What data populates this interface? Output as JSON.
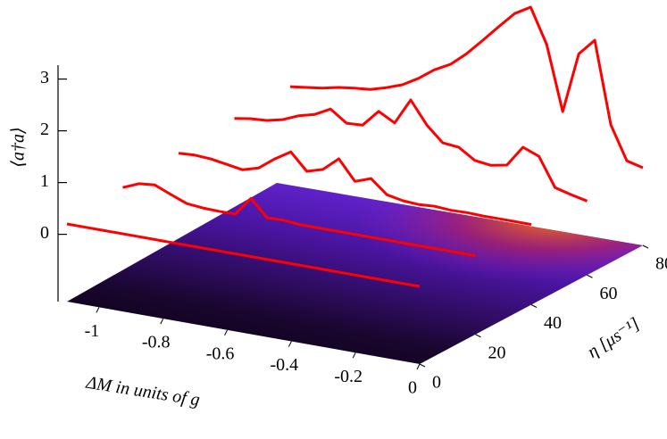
{
  "chart_data": {
    "type": "waterfall3d",
    "xlabel": "ΔM in units of g",
    "ylabel": "η [μs⁻¹]",
    "zlabel": "⟨a†a⟩",
    "xlim": [
      -1.1,
      0
    ],
    "ylim": [
      0,
      80
    ],
    "zlim": [
      -1.3,
      3.3
    ],
    "xticks": [
      -1,
      -0.8,
      -0.6,
      -0.4,
      -0.2,
      0
    ],
    "yticks": [
      0,
      20,
      40,
      60,
      80
    ],
    "zticks": [
      0,
      1,
      2,
      3
    ],
    "x": [
      -1.1,
      -1.05,
      -1.0,
      -0.95,
      -0.9,
      -0.85,
      -0.8,
      -0.75,
      -0.7,
      -0.65,
      -0.6,
      -0.55,
      -0.5,
      -0.45,
      -0.4,
      -0.35,
      -0.3,
      -0.25,
      -0.2,
      -0.15,
      -0.1,
      -0.05,
      0
    ],
    "color": "#ff0000",
    "series": [
      {
        "y": 0,
        "values": [
          0.2,
          0.2,
          0.2,
          0.2,
          0.2,
          0.2,
          0.2,
          0.2,
          0.2,
          0.2,
          0.2,
          0.2,
          0.2,
          0.2,
          0.2,
          0.2,
          0.2,
          0.2,
          0.2,
          0.2,
          0.2,
          0.2,
          0.2
        ]
      },
      {
        "y": 20,
        "values": [
          0.33,
          0.46,
          0.49,
          0.36,
          0.24,
          0.21,
          0.2,
          0.2,
          0.56,
          0.24,
          0.25,
          0.22,
          0.22,
          0.22,
          0.22,
          0.22,
          0.22,
          0.22,
          0.22,
          0.22,
          0.22,
          0.22,
          0.22
        ]
      },
      {
        "y": 40,
        "values": [
          0.42,
          0.44,
          0.42,
          0.37,
          0.32,
          0.41,
          0.64,
          0.83,
          0.51,
          0.6,
          0.86,
          0.48,
          0.59,
          0.33,
          0.27,
          0.25,
          0.27,
          0.25,
          0.26,
          0.25,
          0.25,
          0.25,
          0.25
        ]
      },
      {
        "y": 60,
        "values": [
          0.52,
          0.57,
          0.59,
          0.66,
          0.79,
          0.87,
          1.03,
          0.81,
          0.83,
          1.15,
          0.98,
          1.48,
          1.05,
          0.76,
          0.73,
          0.53,
          0.49,
          0.55,
          0.95,
          0.83,
          0.28,
          0.2,
          0.13
        ]
      },
      {
        "y": 80,
        "values": [
          0.56,
          0.6,
          0.64,
          0.71,
          0.75,
          0.78,
          0.87,
          0.98,
          1.16,
          1.38,
          1.54,
          1.8,
          2.11,
          2.43,
          2.74,
          2.92,
          2.25,
          1.01,
          2.18,
          2.5,
          0.92,
          0.28,
          0.2
        ]
      }
    ]
  }
}
